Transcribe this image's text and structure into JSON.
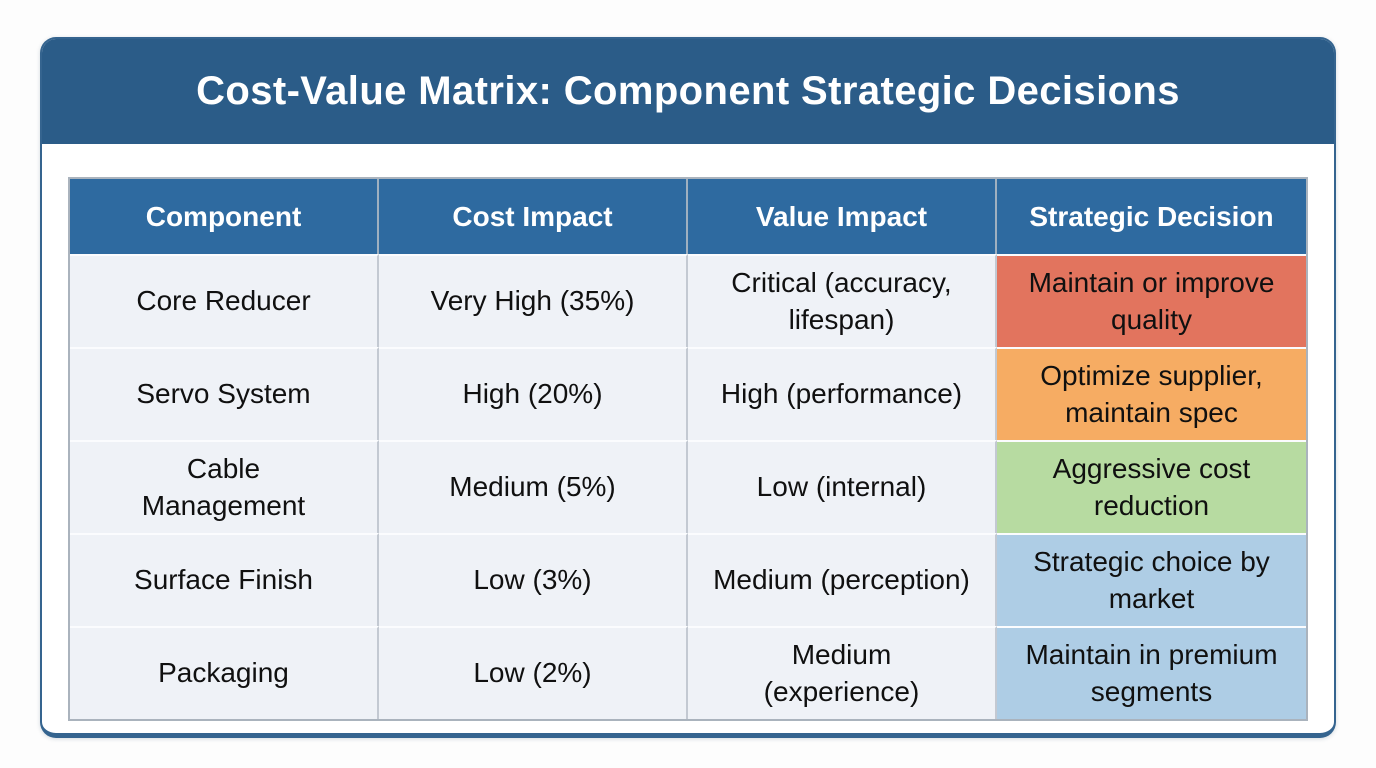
{
  "chart_data": {
    "type": "table",
    "title": "Cost-Value Matrix: Component Strategic Decisions",
    "columns": [
      "Component",
      "Cost Impact",
      "Value Impact",
      "Strategic Decision"
    ],
    "rows": [
      [
        "Core Reducer",
        "Very High (35%)",
        "Critical (accuracy, lifespan)",
        "Maintain or improve quality"
      ],
      [
        "Servo System",
        "High (20%)",
        "High (performance)",
        "Optimize supplier, maintain spec"
      ],
      [
        "Cable Management",
        "Medium (5%)",
        "Low (internal)",
        "Aggressive cost reduction"
      ],
      [
        "Surface Finish",
        "Low (3%)",
        "Medium (perception)",
        "Strategic choice by market"
      ],
      [
        "Packaging",
        "Low (2%)",
        "Medium (experience)",
        "Maintain in premium segments"
      ]
    ],
    "decision_colors": [
      "#E2745E",
      "#F6AC63",
      "#B7DBA1",
      "#AECDE5",
      "#AECDE5"
    ],
    "legend_position": "none",
    "grid": "on"
  },
  "colors": {
    "card_header": "#2b5c88",
    "table_header": "#2e6aa0",
    "border_blue": "#35648f",
    "row_bg": "#eff2f7",
    "decision_red": "#E2745E",
    "decision_orange": "#F6AC63",
    "decision_green": "#B7DBA1",
    "decision_blue": "#AECDE5"
  }
}
